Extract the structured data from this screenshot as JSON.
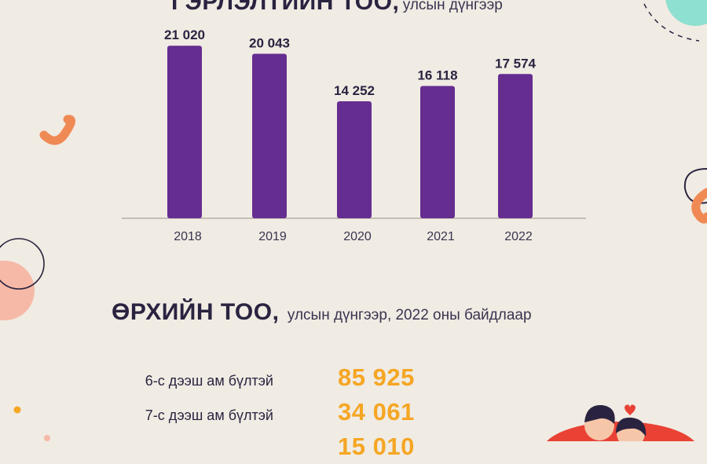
{
  "title1": {
    "main": "ГЭРЛЭЛТИЙН ТОО,",
    "sub": "улсын дүнгээр"
  },
  "chart_data": {
    "type": "bar",
    "categories": [
      "2018",
      "2019",
      "2020",
      "2021",
      "2022"
    ],
    "values": [
      21020,
      20043,
      14252,
      16118,
      17574
    ],
    "value_labels": [
      "21 020",
      "20 043",
      "14 252",
      "16 118",
      "17 574"
    ],
    "ylim": [
      0,
      22000
    ],
    "grid": false,
    "colors": {
      "bar": "#652d90",
      "axis": "#a9a39b"
    }
  },
  "title2": {
    "main": "ӨРХИЙН ТОО,",
    "sub": "улсын дүнгээр, 2022 оны байдлаар"
  },
  "stats": [
    {
      "label": "6-с дээш ам бүлтэй",
      "value": "85 925"
    },
    {
      "label": "7-с дээш ам бүлтэй",
      "value": "34 061"
    },
    {
      "label": "",
      "value": "15 010"
    }
  ],
  "colors": {
    "background": "#f0ebe3",
    "accent_orange": "#f5a623",
    "deco_coral": "#f08a55",
    "deco_teal": "#8ee0d0",
    "deco_pink": "#f6b9a7"
  }
}
